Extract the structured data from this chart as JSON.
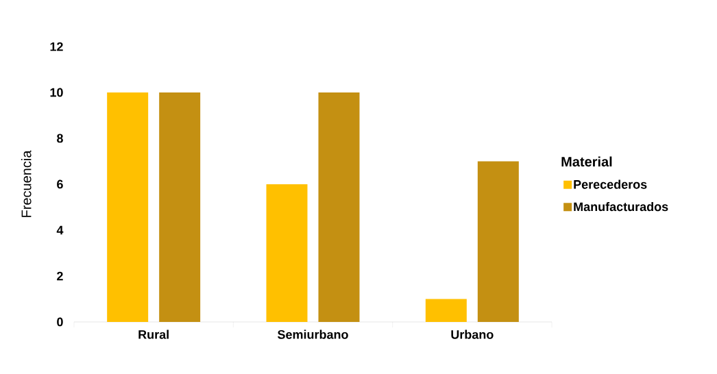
{
  "chart_data": {
    "type": "bar",
    "categories": [
      "Rural",
      "Semiurbano",
      "Urbano"
    ],
    "ylabel": "Frecuencia",
    "legend_title": "Material",
    "legend": "right",
    "ylim": [
      0,
      12
    ],
    "yticks": [
      0,
      2,
      4,
      6,
      8,
      10,
      12
    ],
    "series": [
      {
        "name": "Perecederos",
        "color": "#ffc000",
        "values": [
          10,
          6,
          1
        ]
      },
      {
        "name": "Manufacturados",
        "color": "#c49012",
        "values": [
          10,
          10,
          7
        ]
      }
    ]
  }
}
